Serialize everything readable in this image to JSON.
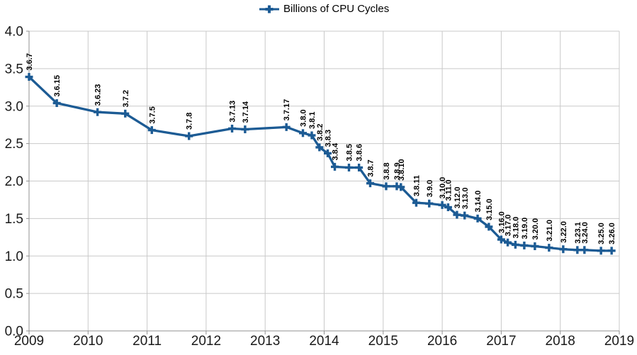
{
  "page": {
    "background": "#ffffff"
  },
  "legend": {
    "position": "top-center"
  },
  "colors": {
    "series": "#1c5b94",
    "grid": "#c9c9c9",
    "axis": "#919191",
    "tick_label": "#1a1a1a",
    "point_label": "#000000"
  },
  "chart_data": {
    "type": "line",
    "title": "",
    "grid": true,
    "legend_position": "top-center",
    "xlim": [
      2009,
      2019
    ],
    "ylim": [
      0.0,
      4.0
    ],
    "x_axis": {
      "tick_values": [
        2009,
        2010,
        2011,
        2012,
        2013,
        2014,
        2015,
        2016,
        2017,
        2018,
        2019
      ],
      "tick_labels": [
        "2009",
        "2010",
        "2011",
        "2012",
        "2013",
        "2014",
        "2015",
        "2016",
        "2017",
        "2018",
        "2019"
      ]
    },
    "y_axis": {
      "tick_values": [
        0.0,
        0.5,
        1.0,
        1.5,
        2.0,
        2.5,
        3.0,
        3.5,
        4.0
      ],
      "tick_labels": [
        "0.0",
        "0.5",
        "1.0",
        "1.5",
        "2.0",
        "2.5",
        "3.0",
        "3.5",
        "4.0"
      ]
    },
    "series": [
      {
        "name": "Billions of CPU Cycles",
        "marker": "plus",
        "points": [
          {
            "label": "3.6.7",
            "x": 2009.0,
            "y": 3.39
          },
          {
            "label": "3.6.15",
            "x": 2009.47,
            "y": 3.04
          },
          {
            "label": "3.6.23",
            "x": 2010.16,
            "y": 2.92
          },
          {
            "label": "3.7.2",
            "x": 2010.63,
            "y": 2.9
          },
          {
            "label": "3.7.5",
            "x": 2011.08,
            "y": 2.68
          },
          {
            "label": "3.7.8",
            "x": 2011.71,
            "y": 2.6
          },
          {
            "label": "3.7.13",
            "x": 2012.44,
            "y": 2.7
          },
          {
            "label": "3.7.14",
            "x": 2012.66,
            "y": 2.69
          },
          {
            "label": "3.7.17",
            "x": 2013.36,
            "y": 2.72
          },
          {
            "label": "3.8.0",
            "x": 2013.64,
            "y": 2.64
          },
          {
            "label": "3.8.1",
            "x": 2013.79,
            "y": 2.61
          },
          {
            "label": "3.8.2",
            "x": 2013.92,
            "y": 2.45
          },
          {
            "label": "3.8.3",
            "x": 2014.06,
            "y": 2.37
          },
          {
            "label": "3.8.4",
            "x": 2014.18,
            "y": 2.19
          },
          {
            "label": "3.8.5",
            "x": 2014.42,
            "y": 2.18
          },
          {
            "label": "3.8.6",
            "x": 2014.59,
            "y": 2.18
          },
          {
            "label": "3.8.7",
            "x": 2014.78,
            "y": 1.97
          },
          {
            "label": "3.8.8",
            "x": 2015.05,
            "y": 1.93
          },
          {
            "label": "3.8.9",
            "x": 2015.23,
            "y": 1.93
          },
          {
            "label": "3.8.10",
            "x": 2015.3,
            "y": 1.92
          },
          {
            "label": "3.8.11",
            "x": 2015.56,
            "y": 1.71
          },
          {
            "label": "3.9.0",
            "x": 2015.78,
            "y": 1.7
          },
          {
            "label": "3.10.0",
            "x": 2016.0,
            "y": 1.68
          },
          {
            "label": "3.11.0",
            "x": 2016.1,
            "y": 1.65
          },
          {
            "label": "3.12.0",
            "x": 2016.25,
            "y": 1.55
          },
          {
            "label": "3.13.0",
            "x": 2016.38,
            "y": 1.54
          },
          {
            "label": "3.14.0",
            "x": 2016.6,
            "y": 1.5
          },
          {
            "label": "3.15.0",
            "x": 2016.79,
            "y": 1.39
          },
          {
            "label": "3.16.0",
            "x": 2017.0,
            "y": 1.22
          },
          {
            "label": "3.17.0",
            "x": 2017.11,
            "y": 1.18
          },
          {
            "label": "3.18.0",
            "x": 2017.24,
            "y": 1.15
          },
          {
            "label": "3.19.0",
            "x": 2017.39,
            "y": 1.14
          },
          {
            "label": "3.20.0",
            "x": 2017.57,
            "y": 1.13
          },
          {
            "label": "3.21.0",
            "x": 2017.81,
            "y": 1.11
          },
          {
            "label": "3.22.0",
            "x": 2018.05,
            "y": 1.09
          },
          {
            "label": "3.23.1",
            "x": 2018.29,
            "y": 1.08
          },
          {
            "label": "3.24.0",
            "x": 2018.41,
            "y": 1.08
          },
          {
            "label": "3.25.0",
            "x": 2018.69,
            "y": 1.07
          },
          {
            "label": "3.26.0",
            "x": 2018.87,
            "y": 1.07
          }
        ]
      }
    ]
  }
}
